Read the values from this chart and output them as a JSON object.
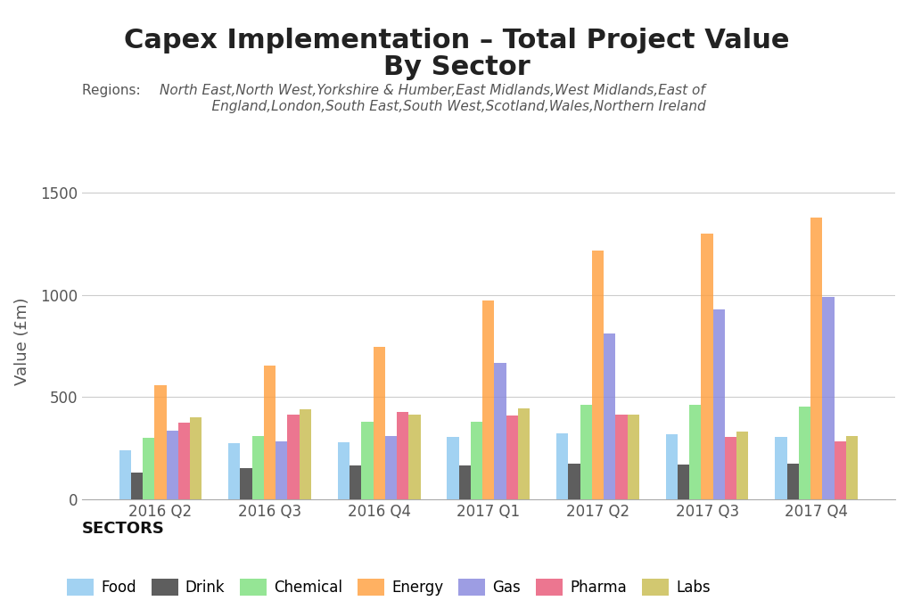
{
  "title_line1": "Capex Implementation – Total Project Value",
  "title_line2": "By Sector",
  "subtitle_label": "Regions: ",
  "subtitle_text": "North East,North West,Yorkshire & Humber,East Midlands,West Midlands,East of\n            England,London,South East,South West,Scotland,Wales,Northern Ireland",
  "ylabel": "Value (£m)",
  "quarters": [
    "2016 Q2",
    "2016 Q3",
    "2016 Q4",
    "2017 Q1",
    "2017 Q2",
    "2017 Q3",
    "2017 Q4"
  ],
  "sectors": [
    "Food",
    "Drink",
    "Chemical",
    "Energy",
    "Gas",
    "Pharma",
    "Labs"
  ],
  "colors": [
    "#8EC8F0",
    "#3a3a3a",
    "#7EE07E",
    "#FFA040",
    "#8888DD",
    "#E85878",
    "#C8BC50"
  ],
  "data": {
    "Food": [
      240,
      275,
      280,
      305,
      325,
      320,
      305
    ],
    "Drink": [
      130,
      155,
      165,
      165,
      175,
      170,
      175
    ],
    "Chemical": [
      300,
      310,
      380,
      380,
      465,
      465,
      455
    ],
    "Energy": [
      560,
      655,
      745,
      975,
      1220,
      1300,
      1380
    ],
    "Gas": [
      335,
      285,
      310,
      670,
      810,
      930,
      990
    ],
    "Pharma": [
      375,
      415,
      430,
      410,
      415,
      305,
      285
    ],
    "Labs": [
      400,
      440,
      415,
      445,
      415,
      330,
      310
    ]
  },
  "ylim": [
    0,
    1550
  ],
  "yticks": [
    0,
    500,
    1000,
    1500
  ],
  "legend_title": "SECTORS",
  "background_color": "#ffffff",
  "grid_color": "#cccccc",
  "title_fontsize": 22,
  "subtitle_fontsize": 11,
  "axis_label_fontsize": 13,
  "tick_fontsize": 12,
  "legend_fontsize": 12,
  "bar_width": 0.108,
  "bar_alpha": 0.82
}
